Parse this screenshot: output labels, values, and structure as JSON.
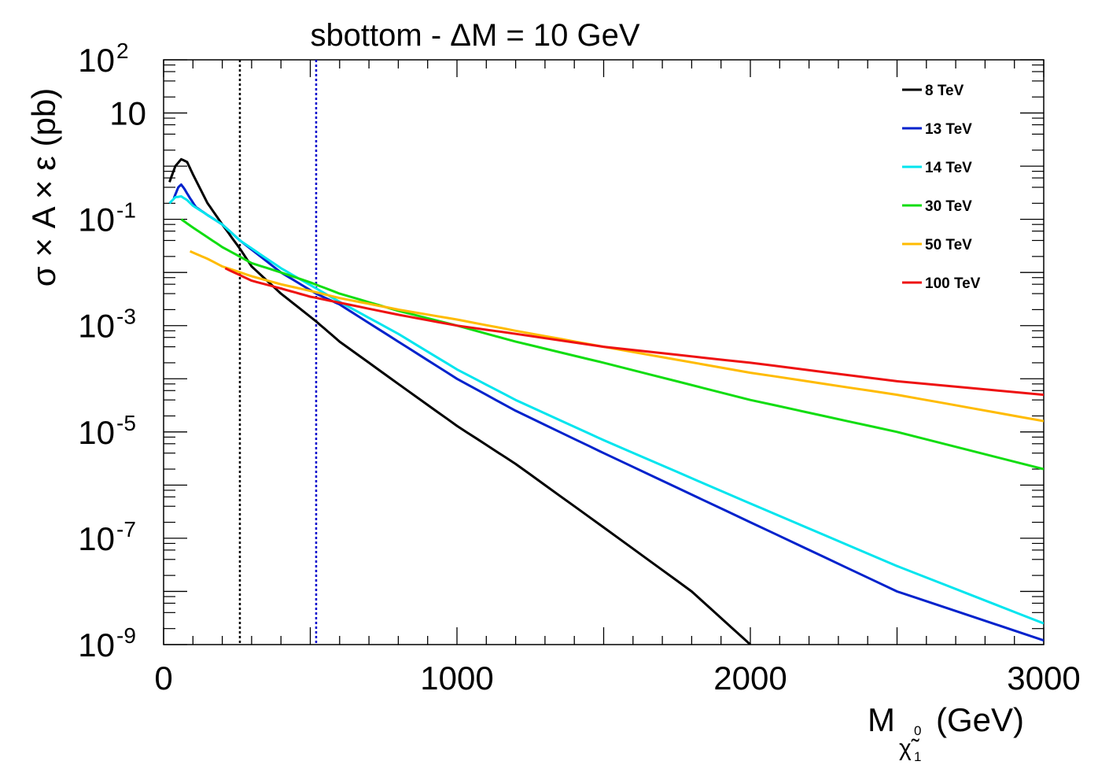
{
  "chart_data": {
    "type": "line",
    "title": "sbottom - ΔM = 10 GeV",
    "xlabel": {
      "main": "M",
      "sub_symbol": "χ̃",
      "sub_super": "0",
      "sub_sub": "1",
      "unit": "(GeV)"
    },
    "ylabel": "σ × A × ε (pb)",
    "xlim": [
      0,
      3000
    ],
    "ylim": [
      1e-09,
      100
    ],
    "yscale": "log",
    "x_ticks": [
      {
        "value": 0,
        "label": "0"
      },
      {
        "value": 1000,
        "label": "1000"
      },
      {
        "value": 2000,
        "label": "2000"
      },
      {
        "value": 3000,
        "label": "3000"
      }
    ],
    "y_ticks": [
      {
        "exp": -9,
        "base": "10",
        "sup": "-9"
      },
      {
        "exp": -7,
        "base": "10",
        "sup": "-7"
      },
      {
        "exp": -5,
        "base": "10",
        "sup": "-5"
      },
      {
        "exp": -3,
        "base": "10",
        "sup": "-3"
      },
      {
        "exp": -1,
        "base": "10",
        "sup": "-1"
      },
      {
        "exp": 1,
        "base": "10",
        "sup": ""
      },
      {
        "exp": 2,
        "base": "10",
        "sup": "2"
      }
    ],
    "grid": false,
    "legend_position": "top-right",
    "vlines": [
      {
        "x": 260,
        "color": "#000000",
        "style": "dotted"
      },
      {
        "x": 520,
        "color": "#0000cc",
        "style": "dotted"
      }
    ],
    "series": [
      {
        "name": "8 TeV",
        "color": "#000000",
        "x": [
          20,
          40,
          60,
          80,
          100,
          150,
          200,
          260,
          300,
          400,
          520,
          600,
          800,
          1000,
          1200,
          1500,
          1800,
          2000
        ],
        "y": [
          0.5,
          1.0,
          1.35,
          1.2,
          0.7,
          0.2,
          0.08,
          0.028,
          0.013,
          0.004,
          0.0012,
          0.0005,
          8e-05,
          1.3e-05,
          2.5e-06,
          1.6e-07,
          1e-08,
          1e-09
        ]
      },
      {
        "name": "13 TeV",
        "color": "#0022cc",
        "x": [
          35,
          50,
          60,
          70,
          90,
          110,
          150,
          200,
          260,
          400,
          520,
          600,
          800,
          1000,
          1200,
          1500,
          2000,
          2500,
          3000
        ],
        "y": [
          0.25,
          0.4,
          0.45,
          0.38,
          0.25,
          0.17,
          0.12,
          0.08,
          0.04,
          0.01,
          0.004,
          0.0025,
          0.0005,
          0.0001,
          2.5e-05,
          4e-06,
          2e-07,
          1e-08,
          1.2e-09
        ]
      },
      {
        "name": "14 TeV",
        "color": "#00e5ee",
        "x": [
          20,
          40,
          60,
          80,
          100,
          150,
          200,
          260,
          400,
          520,
          600,
          800,
          1000,
          1200,
          1500,
          2000,
          2500,
          3000
        ],
        "y": [
          0.2,
          0.26,
          0.27,
          0.23,
          0.18,
          0.12,
          0.08,
          0.04,
          0.012,
          0.005,
          0.0028,
          0.0007,
          0.00015,
          4e-05,
          7e-06,
          4.5e-07,
          3e-08,
          2.5e-09
        ]
      },
      {
        "name": "30 TeV",
        "color": "#11dd11",
        "x": [
          60,
          100,
          200,
          300,
          400,
          500,
          600,
          800,
          1000,
          1200,
          1500,
          2000,
          2500,
          3000
        ],
        "y": [
          0.1,
          0.07,
          0.03,
          0.015,
          0.01,
          0.0065,
          0.004,
          0.0019,
          0.001,
          0.0005,
          0.0002,
          4e-05,
          1e-05,
          2e-06
        ]
      },
      {
        "name": "50 TeV",
        "color": "#ffbb00",
        "x": [
          90,
          150,
          200,
          300,
          400,
          500,
          600,
          800,
          1000,
          1200,
          1500,
          2000,
          2500,
          3000
        ],
        "y": [
          0.025,
          0.018,
          0.013,
          0.0085,
          0.006,
          0.0045,
          0.0033,
          0.002,
          0.0013,
          0.0008,
          0.0004,
          0.00013,
          5e-05,
          1.6e-05
        ]
      },
      {
        "name": "100 TeV",
        "color": "#ee1111",
        "x": [
          210,
          300,
          400,
          500,
          600,
          800,
          1000,
          1200,
          1500,
          2000,
          2500,
          3000
        ],
        "y": [
          0.012,
          0.007,
          0.005,
          0.0035,
          0.0027,
          0.0016,
          0.001,
          0.0007,
          0.0004,
          0.0002,
          9e-05,
          5e-05
        ]
      }
    ]
  }
}
